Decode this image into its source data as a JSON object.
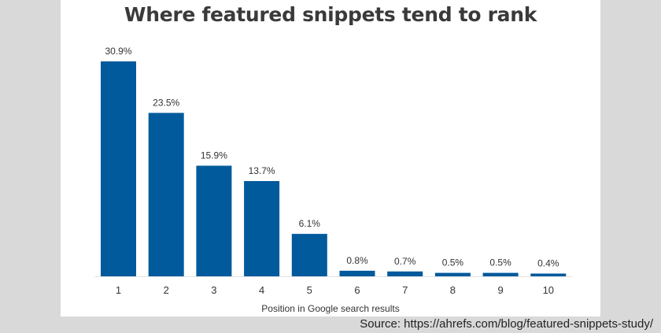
{
  "chart_data": {
    "type": "bar",
    "title": "Where featured snippets tend to rank",
    "xlabel": "Position in Google search results",
    "ylabel": "",
    "categories": [
      "1",
      "2",
      "3",
      "4",
      "5",
      "6",
      "7",
      "8",
      "9",
      "10"
    ],
    "values": [
      30.9,
      23.5,
      15.9,
      13.7,
      6.1,
      0.8,
      0.7,
      0.5,
      0.5,
      0.4
    ],
    "data_labels": [
      "30.9%",
      "23.5%",
      "15.9%",
      "13.7%",
      "6.1%",
      "0.8%",
      "0.7%",
      "0.5%",
      "0.5%",
      "0.4%"
    ],
    "ylim": [
      0,
      30.9
    ],
    "grid": false,
    "bar_color": "#005a9c"
  },
  "source_text": "Source: https://ahrefs.com/blog/featured-snippets-study/"
}
